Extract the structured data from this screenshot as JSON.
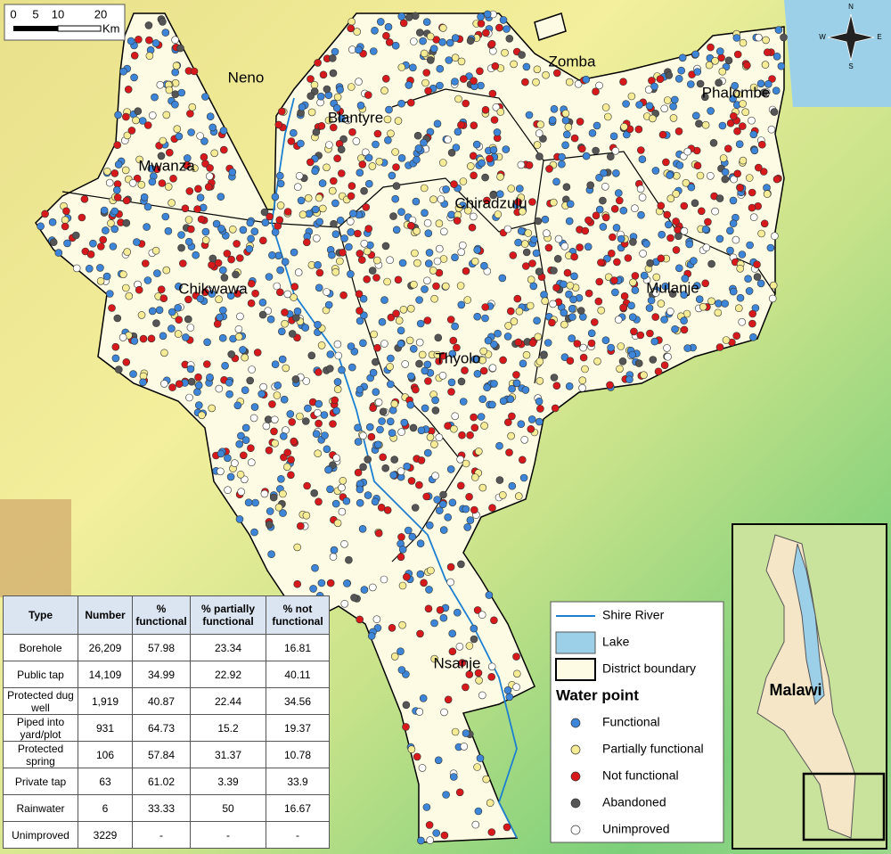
{
  "scale_bar": {
    "labels": [
      "0",
      "5",
      "10",
      "20"
    ],
    "unit": "Km"
  },
  "compass": {
    "n": "N",
    "e": "E",
    "s": "S",
    "w": "W"
  },
  "districts": [
    "Neno",
    "Zomba",
    "Blantyre",
    "Phalombe",
    "Mwanza",
    "Chiradzulu",
    "Chikwawa",
    "Mulanje",
    "Thyolo",
    "Nsanje"
  ],
  "table": {
    "header": [
      "Type",
      "Number",
      "% functional",
      "% partially functional",
      "% not functional"
    ],
    "rows": [
      [
        "Borehole",
        "26,209",
        "57.98",
        "23.34",
        "16.81"
      ],
      [
        "Public tap",
        "14,109",
        "34.99",
        "22.92",
        "40.11"
      ],
      [
        "Protected dug well",
        "1,919",
        "40.87",
        "22.44",
        "34.56"
      ],
      [
        "Piped into yard/plot",
        "931",
        "64.73",
        "15.2",
        "19.37"
      ],
      [
        "Protected spring",
        "106",
        "57.84",
        "31.37",
        "10.78"
      ],
      [
        "Private tap",
        "63",
        "61.02",
        "3.39",
        "33.9"
      ],
      [
        "Rainwater",
        "6",
        "33.33",
        "50",
        "16.67"
      ],
      [
        "Unimproved",
        "3229",
        "-",
        "-",
        "-"
      ]
    ]
  },
  "legend": {
    "items": [
      "Shire River",
      "Lake",
      "District boundary"
    ],
    "title": "Water point",
    "point_types": [
      "Functional",
      "Partially functional",
      "Not functional",
      "Abandoned",
      "Unimproved"
    ]
  },
  "inset": {
    "label": "Malawi"
  }
}
